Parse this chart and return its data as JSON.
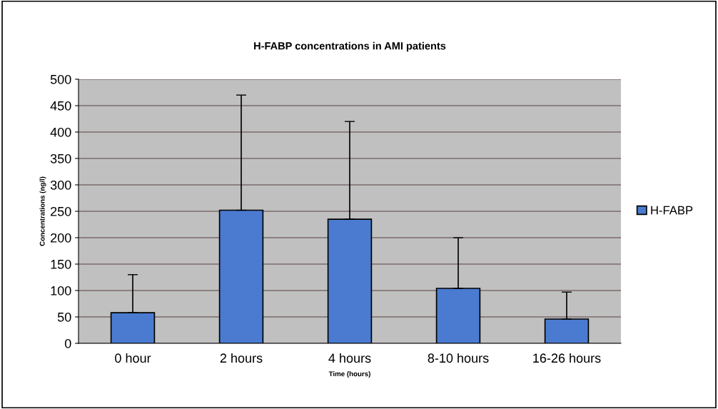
{
  "chart_data": {
    "type": "bar",
    "title": "H-FABP concentrations in AMI patients",
    "xlabel": "Time (hours)",
    "ylabel": "Concentrations (ng/l)",
    "categories": [
      "0 hour",
      "2 hours",
      "4 hours",
      "8-10 hours",
      "16-26 hours"
    ],
    "series": [
      {
        "name": "H-FABP",
        "color": "#4a7bd0",
        "values": [
          58,
          252,
          235,
          104,
          46
        ],
        "errors": [
          [
            58,
            130
          ],
          [
            252,
            470
          ],
          [
            235,
            420
          ],
          [
            104,
            200
          ],
          [
            46,
            97
          ]
        ]
      }
    ],
    "ylim": [
      0,
      500
    ],
    "yticks": [
      0,
      50,
      100,
      150,
      200,
      250,
      300,
      350,
      400,
      450,
      500
    ],
    "grid": "y",
    "legend": "right"
  }
}
